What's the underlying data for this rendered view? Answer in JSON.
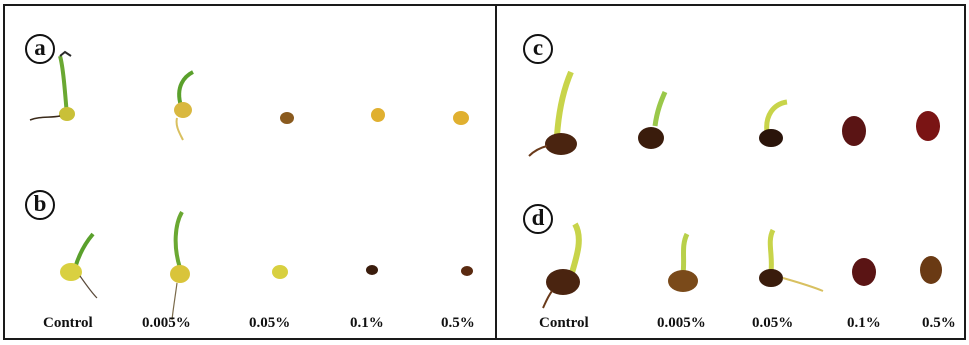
{
  "panel_labels": {
    "a": "a",
    "b": "b",
    "c": "c",
    "d": "d"
  },
  "left_concentrations": [
    "Control",
    "0.005%",
    "0.05%",
    "0.1%",
    "0.5%"
  ],
  "right_concentrations": [
    "Control",
    "0.005%",
    "0.05%",
    "0.1%",
    "0.5%"
  ],
  "colors": {
    "border": "#1a1a1a",
    "seed_yellow": "#d9c43a",
    "seed_brown": "#8a5a1e",
    "seed_dark": "#3a1c0c",
    "seed_red": "#7a1414",
    "shoot_green": "#5aa02c",
    "shoot_yellow": "#c8d44a"
  }
}
